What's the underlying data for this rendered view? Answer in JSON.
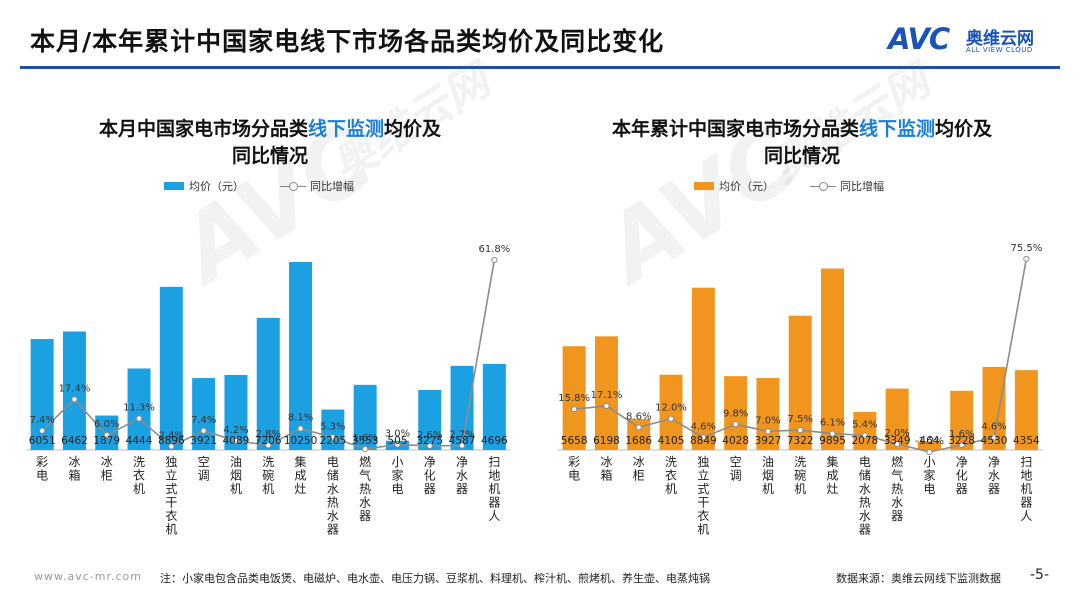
{
  "page": {
    "title": "本月/本年累计中国家电线下市场各品类均价及同比变化",
    "logo_mark": "AVC",
    "logo_cn": "奥维云网",
    "logo_en": "ALL VIEW CLOUD",
    "footnote": "注：小家电包含品类电饭煲、电磁炉、电水壶、电压力锅、豆浆机、料理机、榨汁机、煎烤机、养生壶、电蒸炖锅",
    "website": "www.avc-mr.com",
    "source": "数据来源：奥维云网线下监测数据",
    "page_number": "-5-"
  },
  "colors": {
    "brand_blue": "#1f4fa8",
    "bar_left": "#1ba1e2",
    "bar_right": "#f0961e",
    "line": "#7f7f7f"
  },
  "chart_data": [
    {
      "type": "bar",
      "title_parts": [
        "本月中国家电市场分品类",
        "线下监测",
        "均价及",
        "同比情况"
      ],
      "legend_bar": "均价（元）",
      "legend_line": "同比增幅",
      "categories": [
        "彩电",
        "冰箱",
        "冰柜",
        "洗衣机",
        "独立式干衣机",
        "空调",
        "油烟机",
        "洗碗机",
        "集成灶",
        "电储水热水器",
        "燃气热水器",
        "小家电",
        "净化器",
        "净水器",
        "扫地机器人"
      ],
      "series": [
        {
          "name": "均价（元）",
          "kind": "bar",
          "values": [
            6051,
            6462,
            1879,
            4444,
            8896,
            3921,
            4089,
            7206,
            10250,
            2205,
            3553,
            505,
            3275,
            4587,
            4696
          ]
        },
        {
          "name": "同比增幅",
          "kind": "line",
          "values": [
            7.4,
            17.4,
            6.0,
            11.3,
            2.4,
            7.4,
            4.2,
            2.8,
            8.1,
            5.3,
            1.6,
            3.0,
            2.6,
            2.7,
            61.8
          ],
          "labels": [
            "7.4%",
            "17.4%",
            "6.0%",
            "11.3%",
            "2.4%",
            "7.4%",
            "4.2%",
            "2.8%",
            "8.1%",
            "5.3%",
            "1.6%",
            "3.0%",
            "2.6%",
            "2.7%",
            "61.8%"
          ]
        }
      ]
    },
    {
      "type": "bar",
      "title_parts": [
        "本年累计中国家电市场分品类",
        "线下监测",
        "均价及",
        "同比情况"
      ],
      "legend_bar": "均价（元）",
      "legend_line": "同比增幅",
      "categories": [
        "彩电",
        "冰箱",
        "冰柜",
        "洗衣机",
        "独立式干衣机",
        "空调",
        "油烟机",
        "洗碗机",
        "集成灶",
        "电储水热水器",
        "燃气热水器",
        "小家电",
        "净化器",
        "净水器",
        "扫地机器人"
      ],
      "series": [
        {
          "name": "均价（元）",
          "kind": "bar",
          "values": [
            5658,
            6198,
            1686,
            4105,
            8849,
            4028,
            3927,
            7322,
            9895,
            2078,
            3349,
            464,
            3228,
            4530,
            4354
          ]
        },
        {
          "name": "同比增幅",
          "kind": "line",
          "values": [
            15.8,
            17.1,
            8.6,
            12.0,
            4.6,
            9.8,
            7.0,
            7.5,
            6.1,
            5.4,
            2.0,
            -1.2,
            1.6,
            4.6,
            75.5
          ],
          "labels": [
            "15.8%",
            "17.1%",
            "8.6%",
            "12.0%",
            "4.6%",
            "9.8%",
            "7.0%",
            "7.5%",
            "6.1%",
            "5.4%",
            "2.0%",
            "-1.2%",
            "1.6%",
            "4.6%",
            "75.5%"
          ]
        }
      ]
    }
  ]
}
